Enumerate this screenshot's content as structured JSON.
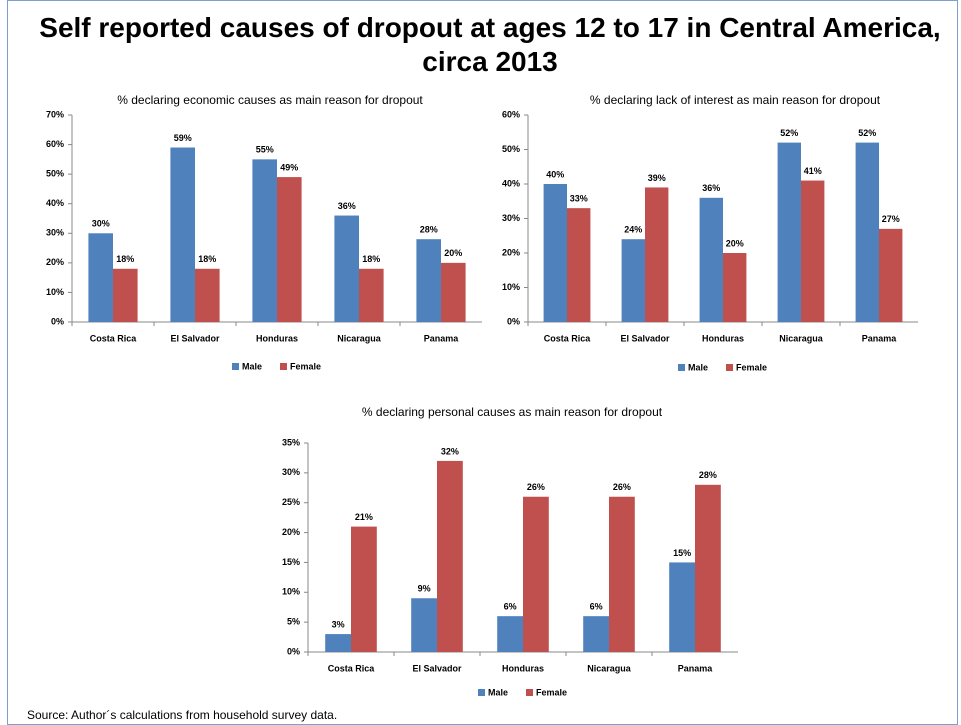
{
  "title": "Self reported causes of dropout at ages 12 to 17 in Central America, circa 2013",
  "source": "Source: Author´s calculations from household survey data.",
  "chart_data": [
    {
      "type": "bar",
      "title": "% declaring economic causes as main reason for dropout",
      "categories": [
        "Costa Rica",
        "El Salvador",
        "Honduras",
        "Nicaragua",
        "Panama"
      ],
      "series": [
        {
          "name": "Male",
          "color": "#4f81bd",
          "values": [
            30,
            59,
            55,
            36,
            28
          ],
          "value_labels": [
            "30%",
            "59%",
            "55%",
            "36%",
            "28%"
          ]
        },
        {
          "name": "Female",
          "color": "#c0504d",
          "values": [
            18,
            18,
            49,
            18,
            20
          ],
          "value_labels": [
            "18%",
            "18%",
            "49%",
            "18%",
            "20%"
          ]
        }
      ],
      "ylim": [
        0,
        70
      ],
      "yticks": [
        {
          "value": 0,
          "label": "0%"
        },
        {
          "value": 10,
          "label": "10%"
        },
        {
          "value": 20,
          "label": "20%"
        },
        {
          "value": 30,
          "label": "30%"
        },
        {
          "value": 40,
          "label": "40%"
        },
        {
          "value": 50,
          "label": "50%"
        },
        {
          "value": 60,
          "label": "60%"
        },
        {
          "value": 70,
          "label": "70%"
        }
      ],
      "legend": "bottom"
    },
    {
      "type": "bar",
      "title": "% declaring lack of interest as main reason for dropout",
      "categories": [
        "Costa Rica",
        "El Salvador",
        "Honduras",
        "Nicaragua",
        "Panama"
      ],
      "series": [
        {
          "name": "Male",
          "color": "#4f81bd",
          "values": [
            40,
            24,
            36,
            52,
            52
          ],
          "value_labels": [
            "40%",
            "24%",
            "36%",
            "52%",
            "52%"
          ]
        },
        {
          "name": "Female",
          "color": "#c0504d",
          "values": [
            33,
            39,
            20,
            41,
            27
          ],
          "value_labels": [
            "33%",
            "39%",
            "20%",
            "41%",
            "27%"
          ]
        }
      ],
      "ylim": [
        0,
        60
      ],
      "yticks": [
        {
          "value": 0,
          "label": "0%"
        },
        {
          "value": 10,
          "label": "10%"
        },
        {
          "value": 20,
          "label": "20%"
        },
        {
          "value": 30,
          "label": "30%"
        },
        {
          "value": 40,
          "label": "40%"
        },
        {
          "value": 50,
          "label": "50%"
        },
        {
          "value": 60,
          "label": "60%"
        }
      ],
      "legend": "bottom"
    },
    {
      "type": "bar",
      "title": "% declaring personal causes as main reason for dropout",
      "categories": [
        "Costa Rica",
        "El Salvador",
        "Honduras",
        "Nicaragua",
        "Panama"
      ],
      "series": [
        {
          "name": "Male",
          "color": "#4f81bd",
          "values": [
            3,
            9,
            6,
            6,
            15
          ],
          "value_labels": [
            "3%",
            "9%",
            "6%",
            "6%",
            "15%"
          ]
        },
        {
          "name": "Female",
          "color": "#c0504d",
          "values": [
            21,
            32,
            26,
            26,
            28
          ],
          "value_labels": [
            "21%",
            "32%",
            "26%",
            "26%",
            "28%"
          ]
        }
      ],
      "ylim": [
        0,
        35
      ],
      "yticks": [
        {
          "value": 0,
          "label": "0%"
        },
        {
          "value": 5,
          "label": "5%"
        },
        {
          "value": 10,
          "label": "10%"
        },
        {
          "value": 15,
          "label": "15%"
        },
        {
          "value": 20,
          "label": "20%"
        },
        {
          "value": 25,
          "label": "25%"
        },
        {
          "value": 30,
          "label": "30%"
        },
        {
          "value": 35,
          "label": "35%"
        }
      ],
      "legend": "bottom"
    }
  ]
}
